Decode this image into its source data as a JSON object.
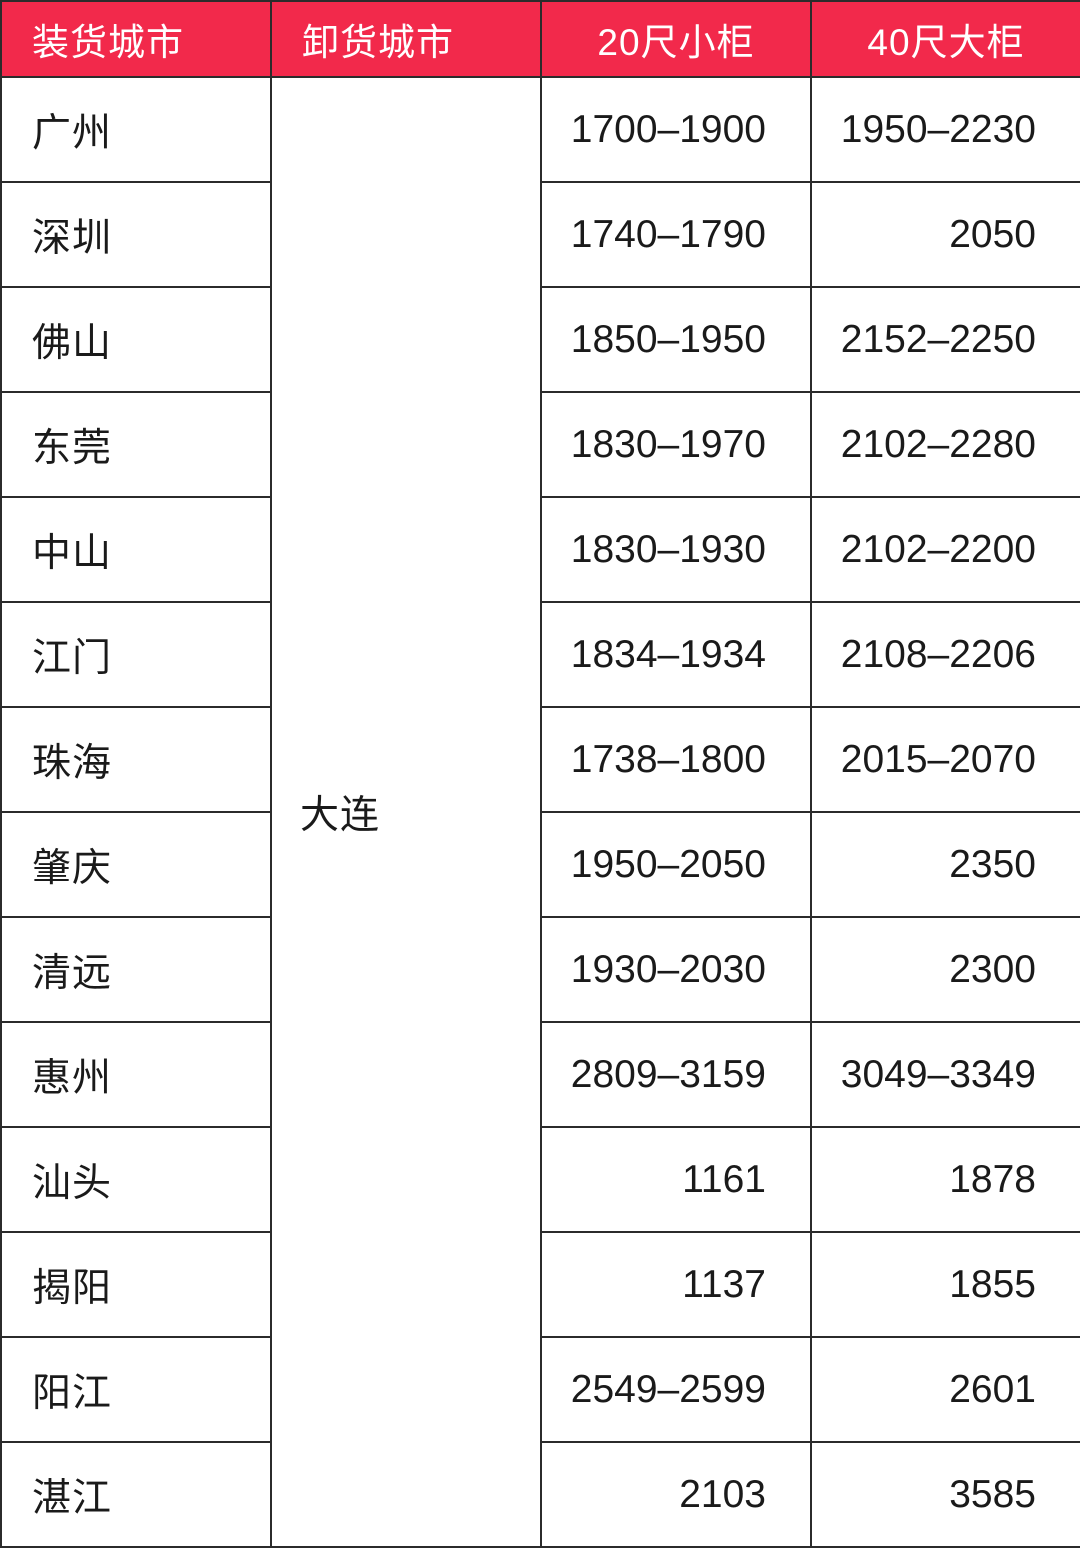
{
  "colors": {
    "header_bg": "#F2294B",
    "header_text": "#FFFFFF",
    "border": "#2B2B2B",
    "body_text": "#1A1A1A",
    "body_bg": "#FFFFFF"
  },
  "table": {
    "headers": [
      {
        "label": "装货城市"
      },
      {
        "label": "卸货城市"
      },
      {
        "label": "20尺小柜"
      },
      {
        "label": "40尺大柜"
      }
    ],
    "unload_city": "大连",
    "rows": [
      {
        "load_city": "广州",
        "price_20ft": "1700–1900",
        "price_40ft": "1950–2230"
      },
      {
        "load_city": "深圳",
        "price_20ft": "1740–1790",
        "price_40ft": "2050"
      },
      {
        "load_city": "佛山",
        "price_20ft": "1850–1950",
        "price_40ft": "2152–2250"
      },
      {
        "load_city": "东莞",
        "price_20ft": "1830–1970",
        "price_40ft": "2102–2280"
      },
      {
        "load_city": "中山",
        "price_20ft": "1830–1930",
        "price_40ft": "2102–2200"
      },
      {
        "load_city": "江门",
        "price_20ft": "1834–1934",
        "price_40ft": "2108–2206"
      },
      {
        "load_city": "珠海",
        "price_20ft": "1738–1800",
        "price_40ft": "2015–2070"
      },
      {
        "load_city": "肇庆",
        "price_20ft": "1950–2050",
        "price_40ft": "2350"
      },
      {
        "load_city": "清远",
        "price_20ft": "1930–2030",
        "price_40ft": "2300"
      },
      {
        "load_city": "惠州",
        "price_20ft": "2809–3159",
        "price_40ft": "3049–3349"
      },
      {
        "load_city": "汕头",
        "price_20ft": "1161",
        "price_40ft": "1878"
      },
      {
        "load_city": "揭阳",
        "price_20ft": "1137",
        "price_40ft": "1855"
      },
      {
        "load_city": "阳江",
        "price_20ft": "2549–2599",
        "price_40ft": "2601"
      },
      {
        "load_city": "湛江",
        "price_20ft": "2103",
        "price_40ft": "3585"
      }
    ]
  },
  "chart_data": {
    "type": "table",
    "columns": [
      "装货城市",
      "卸货城市",
      "20尺小柜",
      "40尺大柜"
    ],
    "rows": [
      [
        "广州",
        "大连",
        "1700–1900",
        "1950–2230"
      ],
      [
        "深圳",
        "大连",
        "1740–1790",
        "2050"
      ],
      [
        "佛山",
        "大连",
        "1850–1950",
        "2152–2250"
      ],
      [
        "东莞",
        "大连",
        "1830–1970",
        "2102–2280"
      ],
      [
        "中山",
        "大连",
        "1830–1930",
        "2102–2200"
      ],
      [
        "江门",
        "大连",
        "1834–1934",
        "2108–2206"
      ],
      [
        "珠海",
        "大连",
        "1738–1800",
        "2015–2070"
      ],
      [
        "肇庆",
        "大连",
        "1950–2050",
        "2350"
      ],
      [
        "清远",
        "大连",
        "1930–2030",
        "2300"
      ],
      [
        "惠州",
        "大连",
        "2809–3159",
        "3049–3349"
      ],
      [
        "汕头",
        "大连",
        "1161",
        "1878"
      ],
      [
        "揭阳",
        "大连",
        "1137",
        "1855"
      ],
      [
        "阳江",
        "大连",
        "2549–2599",
        "2601"
      ],
      [
        "湛江",
        "大连",
        "2103",
        "3585"
      ]
    ],
    "layout": {
      "merged_unload_city_cell": true,
      "header_style": "red background, white text",
      "numeric_alignment": "right",
      "city_alignment": "left"
    }
  }
}
